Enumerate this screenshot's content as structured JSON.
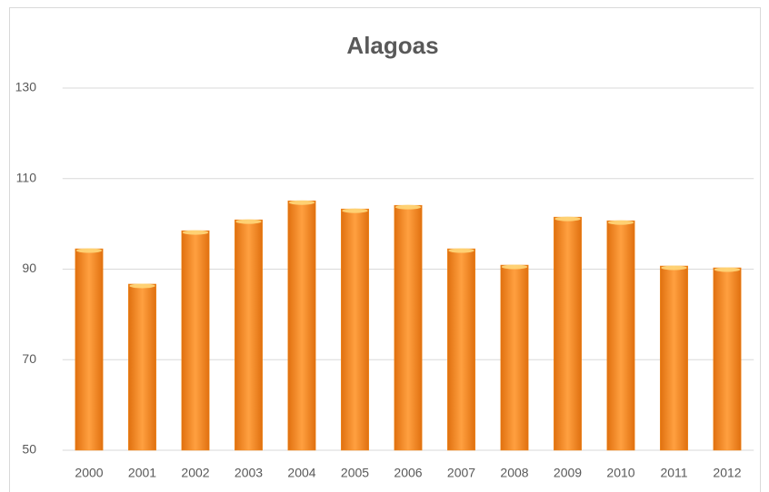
{
  "chart_data": {
    "type": "bar",
    "title": "Alagoas",
    "categories": [
      "2000",
      "2001",
      "2002",
      "2003",
      "2004",
      "2005",
      "2006",
      "2007",
      "2008",
      "2009",
      "2010",
      "2011",
      "2012"
    ],
    "values": [
      94.5,
      86.7,
      98.5,
      100.9,
      105.1,
      103.3,
      104.1,
      94.5,
      90.9,
      101.5,
      100.7,
      90.7,
      90.3
    ],
    "color": "#f28a1e",
    "ylim": [
      50,
      130
    ],
    "yticks": [
      50,
      70,
      90,
      110,
      130
    ],
    "grid": true
  }
}
